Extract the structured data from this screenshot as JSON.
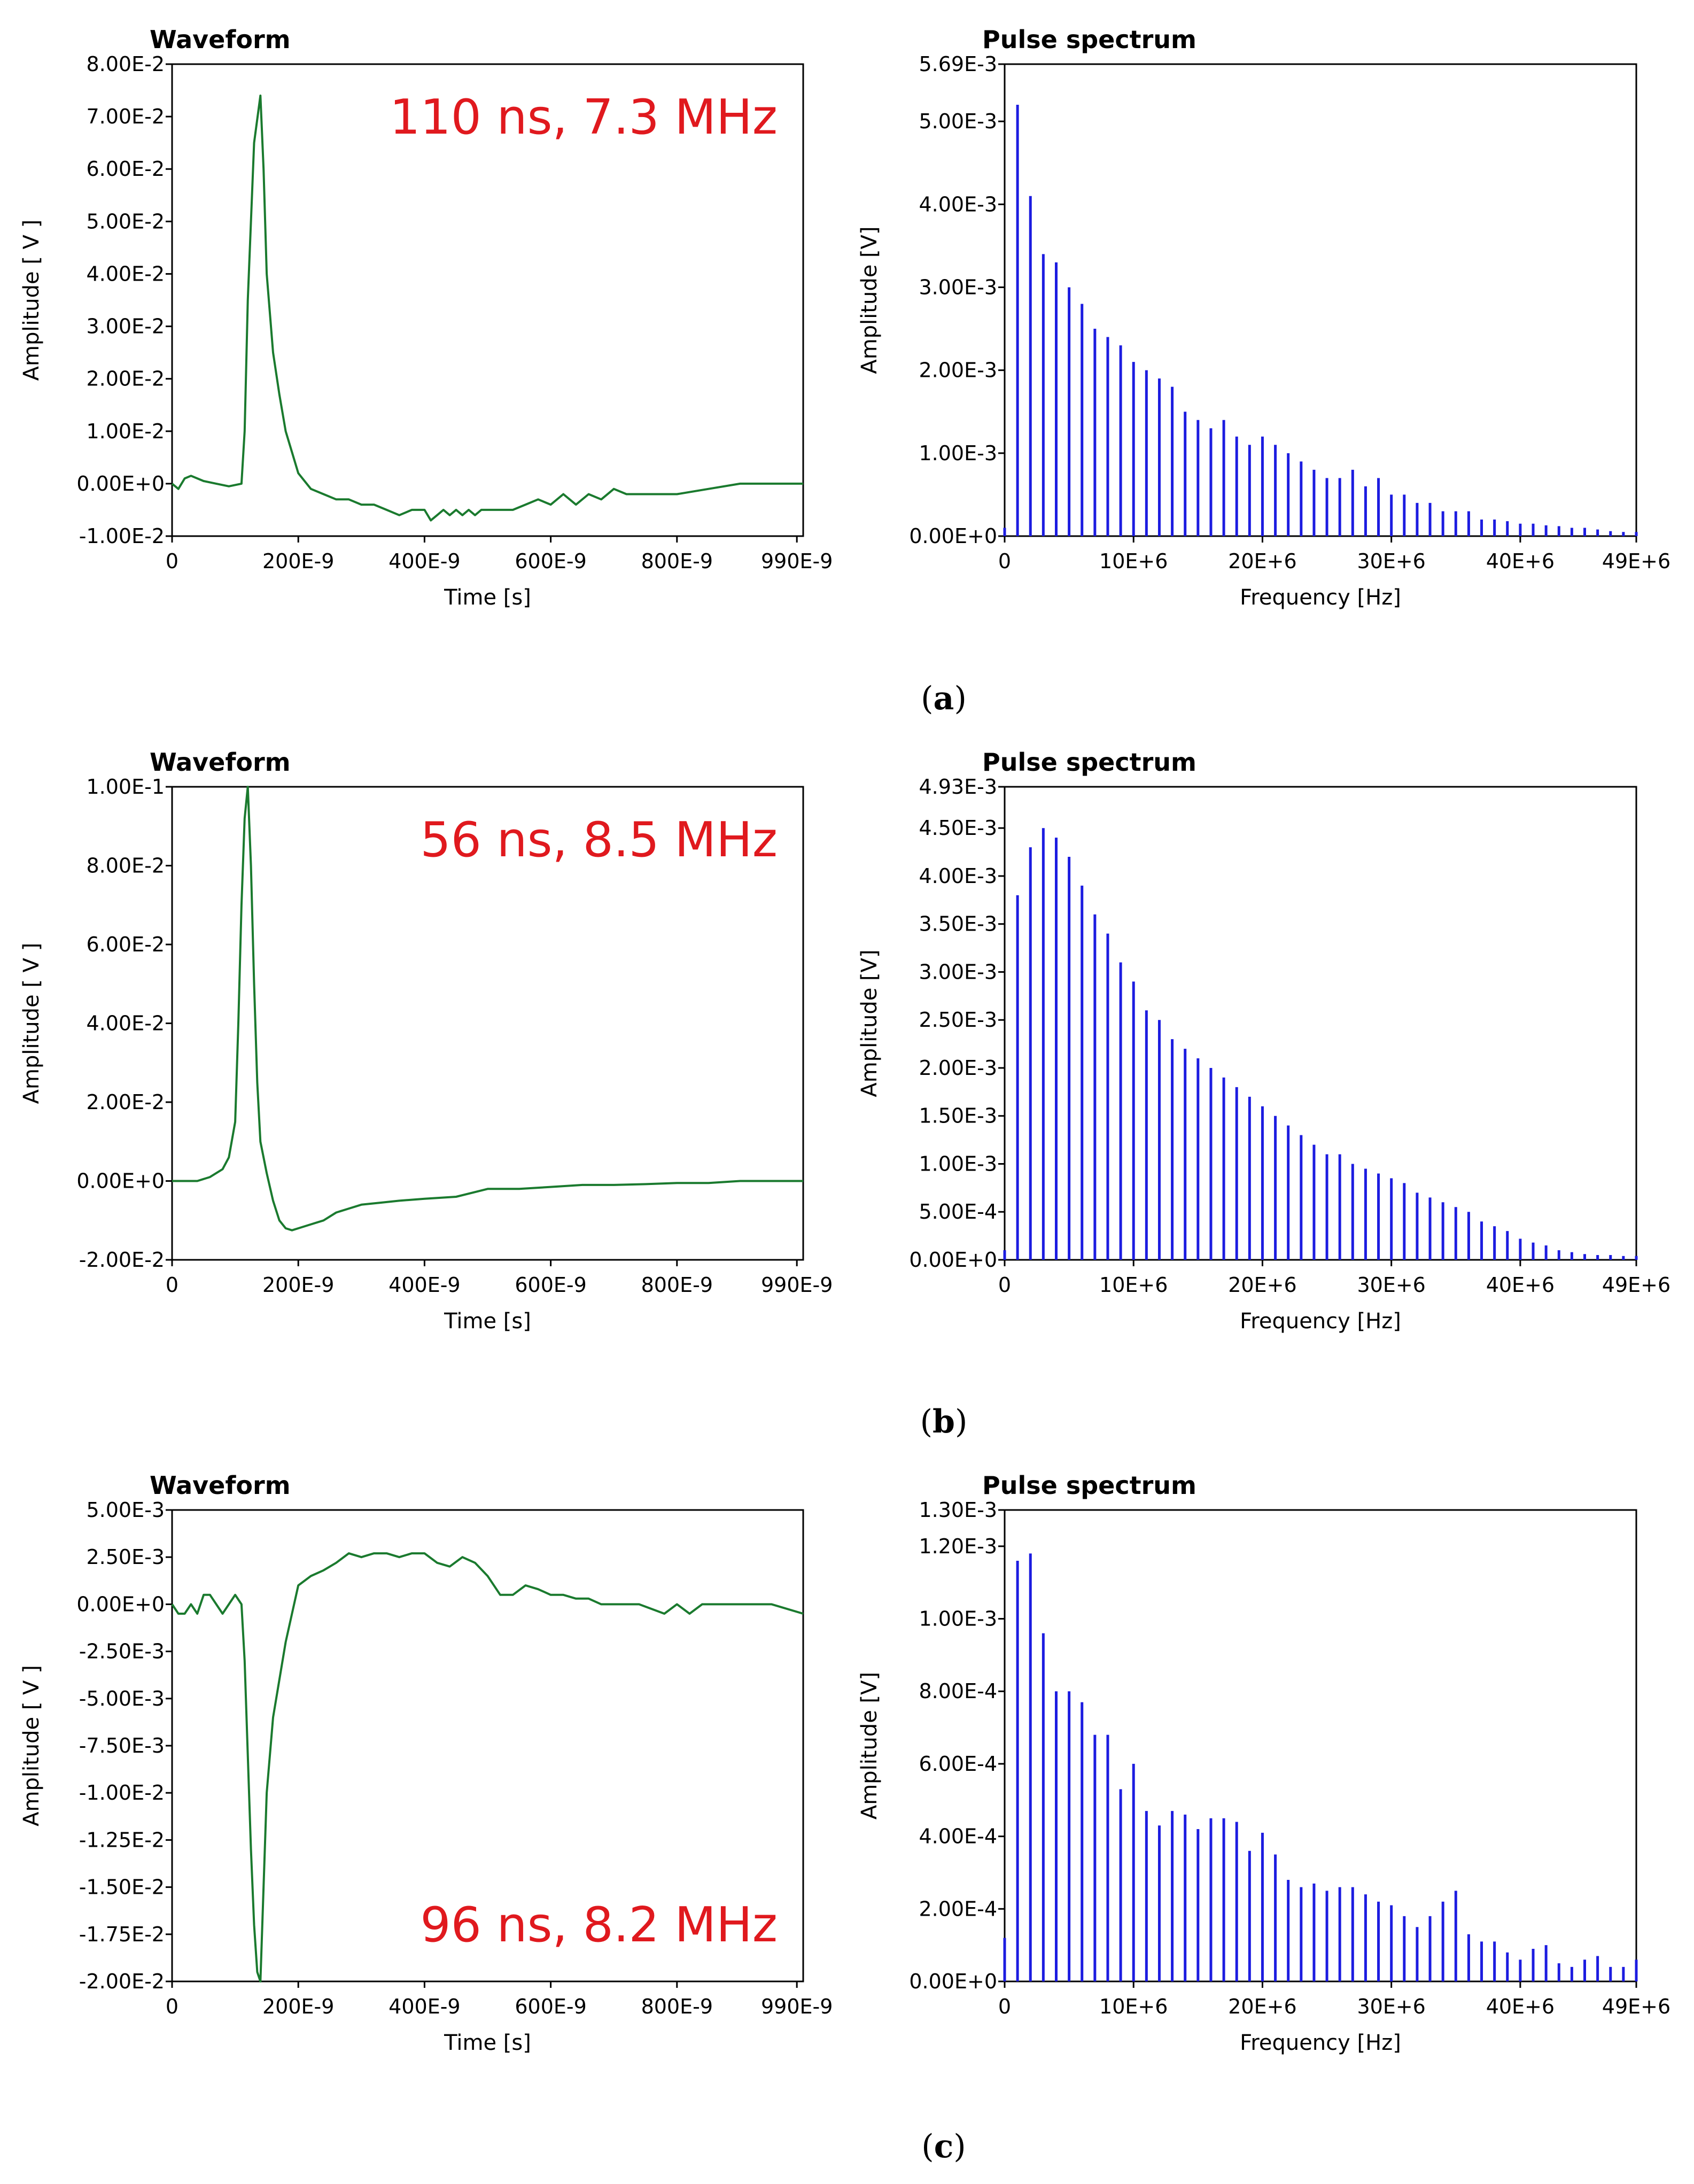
{
  "colors": {
    "waveform": "#1a7a2e",
    "spectrum": "#1c1ce0",
    "annotation": "#e0191e"
  },
  "chart_data": [
    {
      "type": "line",
      "panel": "a",
      "side": "left",
      "title": "Waveform",
      "xlabel": "Time [s]",
      "ylabel": "Amplitude [ V ]",
      "annotation": "110 ns, 7.3 MHz",
      "annotation_pos": "top",
      "xlim": [
        0,
        1e-06
      ],
      "ylim": [
        -0.01,
        0.08
      ],
      "xticks": [
        0,
        2e-07,
        4e-07,
        6e-07,
        8e-07,
        9.9e-07
      ],
      "xtick_labels": [
        "0",
        "200E-9",
        "400E-9",
        "600E-9",
        "800E-9",
        "990E-9"
      ],
      "yticks": [
        -0.01,
        0,
        0.01,
        0.02,
        0.03,
        0.04,
        0.05,
        0.06,
        0.07,
        0.08
      ],
      "ytick_labels": [
        "-1.00E-2",
        "0.00E+0",
        "1.00E-2",
        "2.00E-2",
        "3.00E-2",
        "4.00E-2",
        "5.00E-2",
        "6.00E-2",
        "7.00E-2",
        "8.00E-2"
      ],
      "x": [
        0,
        1e-08,
        2e-08,
        3e-08,
        5e-08,
        7e-08,
        9e-08,
        1.1e-07,
        1.15e-07,
        1.2e-07,
        1.3e-07,
        1.4e-07,
        1.45e-07,
        1.5e-07,
        1.6e-07,
        1.7e-07,
        1.8e-07,
        1.9e-07,
        2e-07,
        2.2e-07,
        2.4e-07,
        2.6e-07,
        2.8e-07,
        3e-07,
        3.2e-07,
        3.4e-07,
        3.6e-07,
        3.8e-07,
        4e-07,
        4.1e-07,
        4.2e-07,
        4.3e-07,
        4.4e-07,
        4.5e-07,
        4.6e-07,
        4.7e-07,
        4.8e-07,
        4.9e-07,
        5e-07,
        5.2e-07,
        5.4e-07,
        5.6e-07,
        5.8e-07,
        6e-07,
        6.2e-07,
        6.4e-07,
        6.6e-07,
        6.8e-07,
        7e-07,
        7.2e-07,
        7.4e-07,
        7.6e-07,
        7.8e-07,
        8e-07,
        8.5e-07,
        9e-07,
        9.5e-07,
        1e-06
      ],
      "y": [
        0,
        -0.001,
        0.001,
        0.0015,
        0.0005,
        0,
        -0.0005,
        0,
        0.01,
        0.035,
        0.065,
        0.074,
        0.06,
        0.04,
        0.025,
        0.017,
        0.01,
        0.006,
        0.002,
        -0.001,
        -0.002,
        -0.003,
        -0.003,
        -0.004,
        -0.004,
        -0.005,
        -0.006,
        -0.005,
        -0.005,
        -0.007,
        -0.006,
        -0.005,
        -0.006,
        -0.005,
        -0.006,
        -0.005,
        -0.006,
        -0.005,
        -0.005,
        -0.005,
        -0.005,
        -0.004,
        -0.003,
        -0.004,
        -0.002,
        -0.004,
        -0.002,
        -0.003,
        -0.001,
        -0.002,
        -0.002,
        -0.002,
        -0.002,
        -0.002,
        -0.001,
        0,
        0,
        0
      ]
    },
    {
      "type": "bar",
      "panel": "a",
      "side": "right",
      "title": "Pulse spectrum",
      "xlabel": "Frequency [Hz]",
      "ylabel": "Amplitude [V]",
      "xlim": [
        0,
        49000000.0
      ],
      "ylim": [
        0,
        0.00569
      ],
      "bin_step": 1000000.0,
      "xticks": [
        0,
        10000000.0,
        20000000.0,
        30000000.0,
        40000000.0,
        49000000.0
      ],
      "xtick_labels": [
        "0",
        "10E+6",
        "20E+6",
        "30E+6",
        "40E+6",
        "49E+6"
      ],
      "yticks": [
        0,
        0.001,
        0.002,
        0.003,
        0.004,
        0.005,
        0.00569
      ],
      "ytick_labels": [
        "0.00E+0",
        "1.00E-3",
        "2.00E-3",
        "3.00E-3",
        "4.00E-3",
        "5.00E-3",
        "5.69E-3"
      ],
      "values": [
        0.0001,
        0.0052,
        0.0041,
        0.0034,
        0.0033,
        0.003,
        0.0028,
        0.0025,
        0.0024,
        0.0023,
        0.0021,
        0.002,
        0.0019,
        0.0018,
        0.0015,
        0.0014,
        0.0013,
        0.0014,
        0.0012,
        0.0011,
        0.0012,
        0.0011,
        0.001,
        0.0009,
        0.0008,
        0.0007,
        0.0007,
        0.0008,
        0.0006,
        0.0007,
        0.0005,
        0.0005,
        0.0004,
        0.0004,
        0.0003,
        0.0003,
        0.0003,
        0.0002,
        0.0002,
        0.00018,
        0.00015,
        0.00015,
        0.00013,
        0.00012,
        0.0001,
        0.0001,
        8e-05,
        6e-05,
        5e-05,
        5e-05
      ]
    },
    {
      "type": "line",
      "panel": "b",
      "side": "left",
      "title": "Waveform",
      "xlabel": "Time [s]",
      "ylabel": "Amplitude [ V ]",
      "annotation": "56 ns, 8.5 MHz",
      "annotation_pos": "top",
      "xlim": [
        0,
        1e-06
      ],
      "ylim": [
        -0.02,
        0.1
      ],
      "xticks": [
        0,
        2e-07,
        4e-07,
        6e-07,
        8e-07,
        9.9e-07
      ],
      "xtick_labels": [
        "0",
        "200E-9",
        "400E-9",
        "600E-9",
        "800E-9",
        "990E-9"
      ],
      "yticks": [
        -0.02,
        0,
        0.02,
        0.04,
        0.06,
        0.08,
        0.1
      ],
      "ytick_labels": [
        "-2.00E-2",
        "0.00E+0",
        "2.00E-2",
        "4.00E-2",
        "6.00E-2",
        "8.00E-2",
        "1.00E-1"
      ],
      "x": [
        0,
        2e-08,
        4e-08,
        6e-08,
        8e-08,
        9e-08,
        1e-07,
        1.05e-07,
        1.1e-07,
        1.15e-07,
        1.2e-07,
        1.25e-07,
        1.3e-07,
        1.35e-07,
        1.4e-07,
        1.5e-07,
        1.6e-07,
        1.7e-07,
        1.8e-07,
        1.9e-07,
        2e-07,
        2.2e-07,
        2.4e-07,
        2.6e-07,
        2.8e-07,
        3e-07,
        3.3e-07,
        3.6e-07,
        4e-07,
        4.5e-07,
        5e-07,
        5.5e-07,
        6e-07,
        6.5e-07,
        7e-07,
        7.5e-07,
        8e-07,
        8.5e-07,
        9e-07,
        9.5e-07,
        1e-06
      ],
      "y": [
        0,
        0,
        0,
        0.001,
        0.003,
        0.006,
        0.015,
        0.04,
        0.07,
        0.092,
        0.1,
        0.08,
        0.05,
        0.025,
        0.01,
        0.002,
        -0.005,
        -0.01,
        -0.012,
        -0.0125,
        -0.012,
        -0.011,
        -0.01,
        -0.008,
        -0.007,
        -0.006,
        -0.0055,
        -0.005,
        -0.0045,
        -0.004,
        -0.002,
        -0.002,
        -0.0015,
        -0.001,
        -0.001,
        -0.0008,
        -0.0005,
        -0.0005,
        0,
        0,
        0
      ]
    },
    {
      "type": "bar",
      "panel": "b",
      "side": "right",
      "title": "Pulse spectrum",
      "xlabel": "Frequency [Hz]",
      "ylabel": "Amplitude [V]",
      "xlim": [
        0,
        49000000.0
      ],
      "ylim": [
        0,
        0.00493
      ],
      "bin_step": 1000000.0,
      "xticks": [
        0,
        10000000.0,
        20000000.0,
        30000000.0,
        40000000.0,
        49000000.0
      ],
      "xtick_labels": [
        "0",
        "10E+6",
        "20E+6",
        "30E+6",
        "40E+6",
        "49E+6"
      ],
      "yticks": [
        0,
        0.0005,
        0.001,
        0.0015,
        0.002,
        0.0025,
        0.003,
        0.0035,
        0.004,
        0.0045,
        0.00493
      ],
      "ytick_labels": [
        "0.00E+0",
        "5.00E-4",
        "1.00E-3",
        "1.50E-3",
        "2.00E-3",
        "2.50E-3",
        "3.00E-3",
        "3.50E-3",
        "4.00E-3",
        "4.50E-3",
        "4.93E-3"
      ],
      "values": [
        0.0001,
        0.0038,
        0.0043,
        0.0045,
        0.0044,
        0.0042,
        0.0039,
        0.0036,
        0.0034,
        0.0031,
        0.0029,
        0.0026,
        0.0025,
        0.0023,
        0.0022,
        0.0021,
        0.002,
        0.0019,
        0.0018,
        0.0017,
        0.0016,
        0.0015,
        0.0014,
        0.0013,
        0.0012,
        0.0011,
        0.0011,
        0.001,
        0.00095,
        0.0009,
        0.00085,
        0.0008,
        0.0007,
        0.00065,
        0.0006,
        0.00055,
        0.0005,
        0.0004,
        0.00035,
        0.0003,
        0.00022,
        0.00018,
        0.00015,
        0.0001,
        8e-05,
        6e-05,
        5e-05,
        5e-05,
        4e-05,
        4e-05
      ]
    },
    {
      "type": "line",
      "panel": "c",
      "side": "left",
      "title": "Waveform",
      "xlabel": "Time [s]",
      "ylabel": "Amplitude [ V ]",
      "annotation": "96 ns, 8.2 MHz",
      "annotation_pos": "bottom",
      "xlim": [
        0,
        1e-06
      ],
      "ylim": [
        -0.02,
        0.005
      ],
      "xticks": [
        0,
        2e-07,
        4e-07,
        6e-07,
        8e-07,
        9.9e-07
      ],
      "xtick_labels": [
        "0",
        "200E-9",
        "400E-9",
        "600E-9",
        "800E-9",
        "990E-9"
      ],
      "yticks": [
        -0.02,
        -0.0175,
        -0.015,
        -0.0125,
        -0.01,
        -0.0075,
        -0.005,
        -0.0025,
        0,
        0.0025,
        0.005
      ],
      "ytick_labels": [
        "-2.00E-2",
        "-1.75E-2",
        "-1.50E-2",
        "-1.25E-2",
        "-1.00E-2",
        "-7.50E-3",
        "-5.00E-3",
        "-2.50E-3",
        "0.00E+0",
        "2.50E-3",
        "5.00E-3"
      ],
      "x": [
        0,
        1e-08,
        2e-08,
        3e-08,
        4e-08,
        5e-08,
        6e-08,
        7e-08,
        8e-08,
        9e-08,
        1e-07,
        1.1e-07,
        1.15e-07,
        1.2e-07,
        1.25e-07,
        1.3e-07,
        1.35e-07,
        1.4e-07,
        1.45e-07,
        1.5e-07,
        1.6e-07,
        1.7e-07,
        1.8e-07,
        1.9e-07,
        2e-07,
        2.2e-07,
        2.4e-07,
        2.6e-07,
        2.8e-07,
        3e-07,
        3.2e-07,
        3.4e-07,
        3.6e-07,
        3.8e-07,
        4e-07,
        4.2e-07,
        4.4e-07,
        4.6e-07,
        4.8e-07,
        5e-07,
        5.2e-07,
        5.4e-07,
        5.6e-07,
        5.8e-07,
        6e-07,
        6.2e-07,
        6.4e-07,
        6.6e-07,
        6.8e-07,
        7e-07,
        7.4e-07,
        7.8e-07,
        8e-07,
        8.2e-07,
        8.4e-07,
        8.6e-07,
        8.8e-07,
        9e-07,
        9.5e-07,
        1e-06
      ],
      "y": [
        0,
        -0.0005,
        -0.0005,
        0,
        -0.0005,
        0.0005,
        0.0005,
        0,
        -0.0005,
        0,
        0.0005,
        0,
        -0.003,
        -0.008,
        -0.013,
        -0.017,
        -0.0195,
        -0.02,
        -0.015,
        -0.01,
        -0.006,
        -0.004,
        -0.002,
        -0.0005,
        0.001,
        0.0015,
        0.0018,
        0.0022,
        0.0027,
        0.0025,
        0.0027,
        0.0027,
        0.0025,
        0.0027,
        0.0027,
        0.0022,
        0.002,
        0.0025,
        0.0022,
        0.0015,
        0.0005,
        0.0005,
        0.001,
        0.0008,
        0.0005,
        0.0005,
        0.0003,
        0.0003,
        0,
        0,
        0,
        -0.0005,
        0,
        -0.0005,
        0,
        0,
        0,
        0,
        0,
        -0.0005
      ]
    },
    {
      "type": "bar",
      "panel": "c",
      "side": "right",
      "title": "Pulse spectrum",
      "xlabel": "Frequency [Hz]",
      "ylabel": "Amplitude [V]",
      "xlim": [
        0,
        49000000.0
      ],
      "ylim": [
        0,
        0.0013
      ],
      "bin_step": 1000000.0,
      "xticks": [
        0,
        10000000.0,
        20000000.0,
        30000000.0,
        40000000.0,
        49000000.0
      ],
      "xtick_labels": [
        "0",
        "10E+6",
        "20E+6",
        "30E+6",
        "40E+6",
        "49E+6"
      ],
      "yticks": [
        0,
        0.0002,
        0.0004,
        0.0006,
        0.0008,
        0.001,
        0.0012,
        0.0013
      ],
      "ytick_labels": [
        "0.00E+0",
        "2.00E-4",
        "4.00E-4",
        "6.00E-4",
        "8.00E-4",
        "1.00E-3",
        "1.20E-3",
        "1.30E-3"
      ],
      "values": [
        0.00012,
        0.00116,
        0.00118,
        0.00096,
        0.0008,
        0.0008,
        0.00077,
        0.00068,
        0.00068,
        0.00053,
        0.0006,
        0.00047,
        0.00043,
        0.00047,
        0.00046,
        0.00042,
        0.00045,
        0.00045,
        0.00044,
        0.00036,
        0.00041,
        0.00035,
        0.00028,
        0.00026,
        0.00027,
        0.00025,
        0.00026,
        0.00026,
        0.00024,
        0.00022,
        0.00021,
        0.00018,
        0.00015,
        0.00018,
        0.00022,
        0.00025,
        0.00013,
        0.00011,
        0.00011,
        8e-05,
        6e-05,
        9e-05,
        0.0001,
        5e-05,
        4e-05,
        6e-05,
        7e-05,
        4e-05,
        4e-05,
        6e-05
      ]
    }
  ],
  "captions": [
    {
      "open": "(",
      "letter": "a",
      "close": ")"
    },
    {
      "open": "(",
      "letter": "b",
      "close": ")"
    },
    {
      "open": "(",
      "letter": "c",
      "close": ")"
    }
  ]
}
